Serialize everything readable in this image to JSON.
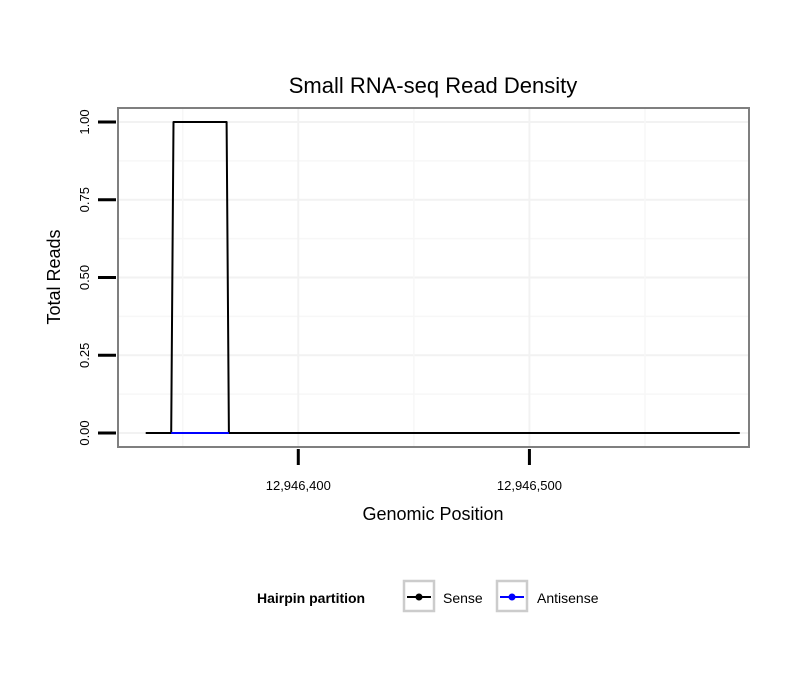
{
  "chart_data": {
    "type": "line",
    "title": "Small RNA-seq Read Density",
    "xlabel": "Genomic Position",
    "ylabel": "Total Reads",
    "xlim": [
      12946322,
      12946595
    ],
    "ylim": [
      -0.045,
      1.045
    ],
    "x_ticks": [
      12946400,
      12946500
    ],
    "x_tick_labels": [
      "12,946,400",
      "12,946,500"
    ],
    "y_ticks": [
      0,
      0.25,
      0.5,
      0.75,
      1.0
    ],
    "y_tick_labels": [
      "0.00",
      "0.25",
      "0.50",
      "0.75",
      "1.00"
    ],
    "grid": true,
    "legend": {
      "title": "Hairpin partition",
      "position": "bottom",
      "entries": [
        "Sense",
        "Antisense"
      ]
    },
    "series": [
      {
        "name": "Sense",
        "color": "#000000",
        "x": [
          12946334,
          12946345,
          12946346,
          12946369,
          12946370,
          12946591
        ],
        "y": [
          0,
          0,
          1,
          1,
          0,
          0
        ]
      },
      {
        "name": "Antisense",
        "color": "#0000ff",
        "x": [
          12946345,
          12946370
        ],
        "y": [
          0,
          0
        ]
      }
    ]
  }
}
